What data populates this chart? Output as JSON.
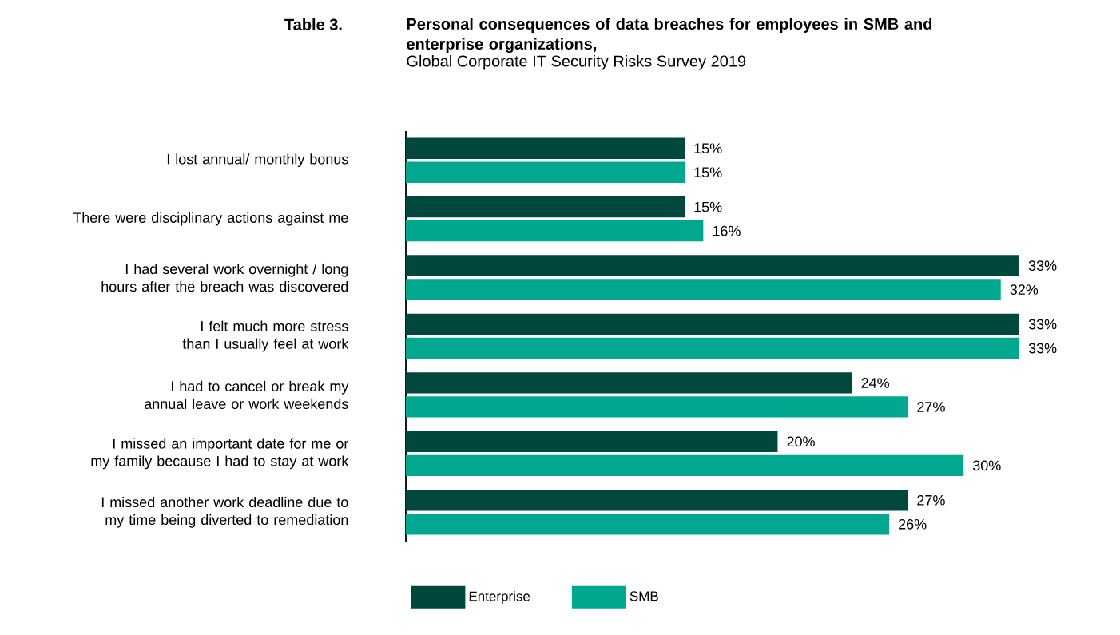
{
  "chart_data": {
    "type": "bar",
    "orientation": "horizontal",
    "title": "Personal consequences of data breaches for employees in SMB and enterprise organizations,",
    "subtitle": "Global Corporate IT Security Risks Survey 2019",
    "annotations": [
      "Table 3."
    ],
    "categories": [
      "I lost annual/ monthly bonus",
      "There were disciplinary actions against me",
      "I had several work overnight / long hours after the breach was discovered",
      "I felt much more stress than I usually feel at work",
      "I had to cancel or break my annual leave or work weekends",
      "I missed an important date for me or my family because I had to stay at work",
      "I missed another work deadline due to my time being diverted to remediation"
    ],
    "series": [
      {
        "name": "Enterprise",
        "color": "#00473e",
        "values": [
          15,
          15,
          33,
          33,
          24,
          20,
          27
        ],
        "value_labels": [
          "15%",
          "15%",
          "33%",
          "33%",
          "24%",
          "20%",
          "27%"
        ]
      },
      {
        "name": "SMB",
        "color": "#00a88f",
        "values": [
          15,
          16,
          32,
          33,
          27,
          30,
          26
        ],
        "value_labels": [
          "15%",
          "16%",
          "32%",
          "33%",
          "27%",
          "30%",
          "26%"
        ]
      }
    ],
    "legend": "bottom"
  }
}
